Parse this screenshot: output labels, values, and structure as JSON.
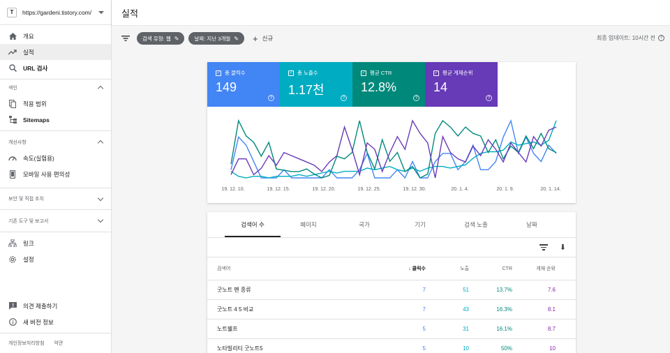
{
  "property": {
    "url": "https://gardeni.tistory.com/",
    "favicon": "T"
  },
  "sidebar": {
    "items_top": [
      {
        "label": "개요",
        "icon": "home-icon",
        "active": false,
        "bold": false
      },
      {
        "label": "실적",
        "icon": "trending-up-icon",
        "active": true,
        "bold": false
      },
      {
        "label": "URL 검사",
        "icon": "search-icon",
        "active": false,
        "bold": true
      }
    ],
    "section_index": {
      "title": "색인",
      "items": [
        {
          "label": "적용 범위",
          "icon": "copy-icon",
          "bold": false
        },
        {
          "label": "Sitemaps",
          "icon": "sitemap-icon",
          "bold": true
        }
      ]
    },
    "section_enhance": {
      "title": "개선사항",
      "items": [
        {
          "label": "속도(실험용)",
          "icon": "speed-icon",
          "bold": false
        },
        {
          "label": "모바일 사용 편의성",
          "icon": "phone-icon",
          "bold": false
        }
      ]
    },
    "section_security": {
      "title": "보안 및 직접 조치"
    },
    "section_legacy": {
      "title": "기존 도구 및 보고서"
    },
    "items_links": [
      {
        "label": "링크",
        "icon": "links-icon",
        "bold": false
      },
      {
        "label": "설정",
        "icon": "gear-icon",
        "bold": false
      }
    ],
    "items_bottom": [
      {
        "label": "의견 제출하기",
        "icon": "feedback-icon",
        "bold": false
      },
      {
        "label": "새 버전 정보",
        "icon": "info-icon",
        "bold": false
      }
    ],
    "footer": {
      "privacy": "개인정보처리방침",
      "terms": "약관"
    }
  },
  "header": {
    "title": "실적"
  },
  "filters": {
    "chip_type": "검색 유형: 웹",
    "chip_date": "날짜: 지난 3개월",
    "new_label": "신규",
    "updated": "최종 업데이트: 10시간 전"
  },
  "metrics": [
    {
      "label": "총 클릭수",
      "value": "149",
      "color": "#4285f4"
    },
    {
      "label": "총 노출수",
      "value": "1.17천",
      "color": "#00acc1"
    },
    {
      "label": "평균 CTR",
      "value": "12.8%",
      "color": "#00897b"
    },
    {
      "label": "평균 게재순위",
      "value": "14",
      "color": "#673ab7"
    }
  ],
  "chart_data": {
    "type": "line",
    "x_ticks": [
      "19. 12. 10.",
      "19. 12. 15.",
      "19. 12. 20.",
      "19. 12. 25.",
      "19. 12. 30.",
      "20. 1. 4.",
      "20. 1. 9.",
      "20. 1. 14."
    ],
    "series": [
      {
        "name": "총 클릭수",
        "color": "#4285f4",
        "values": [
          1,
          5,
          4,
          2,
          0,
          0,
          0,
          1,
          0,
          0,
          0,
          0,
          0,
          1,
          0,
          0,
          0,
          1,
          3,
          0,
          0,
          0,
          1,
          0,
          2,
          0,
          0,
          2,
          3,
          3,
          1,
          2,
          4,
          1,
          1,
          2,
          5,
          7,
          3,
          5,
          3,
          2,
          4,
          3
        ]
      },
      {
        "name": "총 노출수",
        "color": "#00acc1",
        "values": [
          6,
          3,
          2,
          3,
          3,
          2,
          3,
          3,
          3,
          4,
          3,
          4,
          5,
          6,
          5,
          6,
          6,
          6,
          8,
          7,
          8,
          9,
          7,
          6,
          8,
          6,
          8,
          9,
          9,
          8,
          9,
          10,
          14,
          17,
          18,
          18,
          19,
          24,
          22,
          23,
          24,
          22,
          25,
          37
        ]
      },
      {
        "name": "평균 CTR",
        "color": "#00897b",
        "values": [
          16,
          50,
          38,
          33,
          22,
          33,
          12,
          11,
          10,
          10,
          12,
          8,
          5,
          7,
          22,
          20,
          25,
          50,
          25,
          12,
          35,
          18,
          25,
          10,
          14,
          5,
          8,
          40,
          50,
          45,
          38,
          45,
          40,
          38,
          25,
          35,
          20,
          30,
          25,
          38,
          28,
          40,
          28,
          25
        ]
      },
      {
        "name": "평균 게재순위",
        "color": "#673ab7",
        "values": [
          6,
          11,
          11,
          6,
          8,
          12,
          9,
          13,
          12,
          11,
          10,
          9,
          7,
          10,
          12,
          21,
          14,
          6,
          16,
          14,
          7,
          13,
          18,
          14,
          23,
          19,
          16,
          5,
          18,
          13,
          11,
          10,
          15,
          12,
          17,
          14,
          10,
          16,
          13,
          10,
          18,
          15,
          20,
          21
        ]
      }
    ]
  },
  "table": {
    "tabs": [
      "검색어 수",
      "페이지",
      "국가",
      "기기",
      "검색 노출",
      "날짜"
    ],
    "active_tab": 0,
    "columns": {
      "query": "검색어",
      "clicks": "클릭수",
      "impressions": "노출",
      "ctr": "CTR",
      "position": "게재 순위"
    },
    "rows": [
      {
        "query": "굿노트 펜 종류",
        "clicks": "7",
        "impressions": "51",
        "ctr": "13.7%",
        "position": "7.6"
      },
      {
        "query": "굿노트 4 5 비교",
        "clicks": "7",
        "impressions": "43",
        "ctr": "16.3%",
        "position": "8.1"
      },
      {
        "query": "노트쉘프",
        "clicks": "5",
        "impressions": "31",
        "ctr": "16.1%",
        "position": "8.7"
      },
      {
        "query": "노타빌리티 굿노트5",
        "clicks": "5",
        "impressions": "10",
        "ctr": "50%",
        "position": "10"
      }
    ]
  }
}
